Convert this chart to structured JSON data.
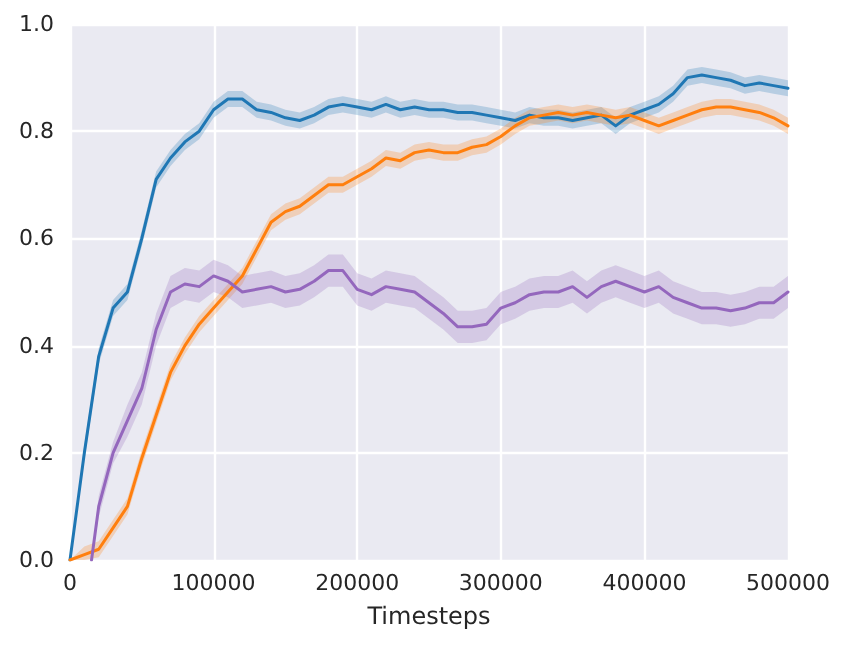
{
  "chart_data": {
    "type": "line",
    "xlabel": "Timesteps",
    "grid": true,
    "marker": "none",
    "line_style": "solid",
    "xlim": [
      0,
      500000
    ],
    "xticks": [
      0,
      100000,
      200000,
      300000,
      400000,
      500000
    ],
    "ylim": [
      0,
      1
    ],
    "yticks": [
      {
        "value": 0,
        "label": "0.0"
      },
      {
        "value": 0.2,
        "label": "0.2"
      },
      {
        "value": 0.4,
        "label": "0.4"
      },
      {
        "value": 0.6,
        "label": "0.6"
      },
      {
        "value": 0.8,
        "label": "0.8"
      },
      {
        "value": 1,
        "label": "1.0"
      }
    ],
    "x": [
      0,
      10000,
      20000,
      30000,
      40000,
      50000,
      60000,
      70000,
      80000,
      90000,
      100000,
      110000,
      120000,
      130000,
      140000,
      150000,
      160000,
      170000,
      180000,
      190000,
      200000,
      210000,
      220000,
      230000,
      240000,
      250000,
      260000,
      270000,
      280000,
      290000,
      300000,
      310000,
      320000,
      330000,
      340000,
      350000,
      360000,
      370000,
      380000,
      390000,
      400000,
      410000,
      420000,
      430000,
      440000,
      450000,
      460000,
      470000,
      480000,
      490000,
      500000
    ],
    "series": [
      {
        "color": "#1f77b4",
        "values": [
          0,
          0.2,
          0.38,
          0.47,
          0.5,
          0.6,
          0.71,
          0.75,
          0.78,
          0.8,
          0.84,
          0.86,
          0.86,
          0.84,
          0.835,
          0.825,
          0.82,
          0.83,
          0.845,
          0.85,
          0.845,
          0.84,
          0.85,
          0.84,
          0.845,
          0.84,
          0.84,
          0.835,
          0.835,
          0.83,
          0.825,
          0.82,
          0.83,
          0.825,
          0.825,
          0.82,
          0.825,
          0.83,
          0.81,
          0.83,
          0.84,
          0.85,
          0.87,
          0.9,
          0.905,
          0.9,
          0.895,
          0.885,
          0.89,
          0.885,
          0.88
        ],
        "lower": [
          0,
          0.185,
          0.365,
          0.455,
          0.485,
          0.585,
          0.695,
          0.735,
          0.765,
          0.785,
          0.825,
          0.845,
          0.845,
          0.825,
          0.82,
          0.81,
          0.805,
          0.815,
          0.83,
          0.835,
          0.83,
          0.825,
          0.835,
          0.825,
          0.83,
          0.825,
          0.825,
          0.82,
          0.82,
          0.815,
          0.81,
          0.805,
          0.815,
          0.81,
          0.81,
          0.805,
          0.81,
          0.815,
          0.795,
          0.815,
          0.825,
          0.835,
          0.855,
          0.885,
          0.89,
          0.885,
          0.88,
          0.87,
          0.875,
          0.87,
          0.865
        ],
        "upper": [
          0,
          0.215,
          0.395,
          0.485,
          0.515,
          0.615,
          0.725,
          0.765,
          0.795,
          0.815,
          0.855,
          0.875,
          0.875,
          0.855,
          0.85,
          0.84,
          0.835,
          0.845,
          0.86,
          0.865,
          0.86,
          0.855,
          0.865,
          0.855,
          0.86,
          0.855,
          0.855,
          0.85,
          0.85,
          0.845,
          0.84,
          0.835,
          0.845,
          0.84,
          0.84,
          0.835,
          0.84,
          0.845,
          0.825,
          0.845,
          0.855,
          0.865,
          0.885,
          0.915,
          0.92,
          0.915,
          0.91,
          0.9,
          0.905,
          0.9,
          0.895
        ]
      },
      {
        "color": "#ff7f0e",
        "values": [
          0,
          0.01,
          0.02,
          0.06,
          0.1,
          0.19,
          0.27,
          0.35,
          0.4,
          0.44,
          0.47,
          0.5,
          0.53,
          0.58,
          0.63,
          0.65,
          0.66,
          0.68,
          0.7,
          0.7,
          0.715,
          0.73,
          0.75,
          0.745,
          0.76,
          0.765,
          0.76,
          0.76,
          0.77,
          0.775,
          0.79,
          0.81,
          0.825,
          0.83,
          0.835,
          0.83,
          0.835,
          0.83,
          0.825,
          0.83,
          0.82,
          0.81,
          0.82,
          0.83,
          0.84,
          0.845,
          0.845,
          0.84,
          0.835,
          0.825,
          0.81
        ],
        "lower": [
          0,
          0,
          0.005,
          0.045,
          0.085,
          0.175,
          0.255,
          0.335,
          0.385,
          0.425,
          0.455,
          0.485,
          0.515,
          0.565,
          0.615,
          0.635,
          0.645,
          0.665,
          0.685,
          0.685,
          0.7,
          0.715,
          0.735,
          0.73,
          0.745,
          0.75,
          0.745,
          0.745,
          0.755,
          0.76,
          0.775,
          0.795,
          0.81,
          0.815,
          0.82,
          0.815,
          0.82,
          0.815,
          0.81,
          0.815,
          0.805,
          0.795,
          0.805,
          0.815,
          0.825,
          0.83,
          0.83,
          0.825,
          0.82,
          0.81,
          0.795
        ],
        "upper": [
          0,
          0.025,
          0.035,
          0.075,
          0.115,
          0.205,
          0.285,
          0.365,
          0.415,
          0.455,
          0.485,
          0.515,
          0.545,
          0.595,
          0.645,
          0.665,
          0.675,
          0.695,
          0.715,
          0.715,
          0.73,
          0.745,
          0.765,
          0.76,
          0.775,
          0.78,
          0.775,
          0.775,
          0.785,
          0.79,
          0.805,
          0.825,
          0.84,
          0.845,
          0.85,
          0.845,
          0.85,
          0.845,
          0.84,
          0.845,
          0.835,
          0.825,
          0.835,
          0.845,
          0.855,
          0.86,
          0.86,
          0.855,
          0.85,
          0.84,
          0.825
        ]
      },
      {
        "color": "#9467bd",
        "x": [
          15000,
          20000,
          30000,
          40000,
          50000,
          60000,
          70000,
          80000,
          90000,
          100000,
          110000,
          120000,
          130000,
          140000,
          150000,
          160000,
          170000,
          180000,
          190000,
          200000,
          210000,
          220000,
          230000,
          240000,
          250000,
          260000,
          270000,
          280000,
          290000,
          300000,
          310000,
          320000,
          330000,
          340000,
          350000,
          360000,
          370000,
          380000,
          390000,
          400000,
          410000,
          420000,
          430000,
          440000,
          450000,
          460000,
          470000,
          480000,
          490000,
          500000
        ],
        "values": [
          0,
          0.1,
          0.2,
          0.26,
          0.32,
          0.43,
          0.5,
          0.515,
          0.51,
          0.53,
          0.52,
          0.5,
          0.505,
          0.51,
          0.5,
          0.505,
          0.52,
          0.54,
          0.54,
          0.505,
          0.495,
          0.51,
          0.505,
          0.5,
          0.48,
          0.46,
          0.435,
          0.435,
          0.44,
          0.47,
          0.48,
          0.495,
          0.5,
          0.5,
          0.51,
          0.49,
          0.51,
          0.52,
          0.51,
          0.5,
          0.51,
          0.49,
          0.48,
          0.47,
          0.47,
          0.465,
          0.47,
          0.48,
          0.48,
          0.5
        ],
        "lower": [
          0,
          0.08,
          0.18,
          0.23,
          0.29,
          0.4,
          0.47,
          0.485,
          0.48,
          0.5,
          0.49,
          0.47,
          0.475,
          0.48,
          0.47,
          0.475,
          0.49,
          0.51,
          0.51,
          0.475,
          0.465,
          0.48,
          0.475,
          0.47,
          0.45,
          0.43,
          0.405,
          0.405,
          0.41,
          0.44,
          0.45,
          0.465,
          0.47,
          0.47,
          0.48,
          0.46,
          0.48,
          0.49,
          0.48,
          0.47,
          0.48,
          0.46,
          0.45,
          0.44,
          0.44,
          0.435,
          0.44,
          0.45,
          0.45,
          0.47
        ],
        "upper": [
          0,
          0.12,
          0.22,
          0.29,
          0.35,
          0.46,
          0.53,
          0.545,
          0.54,
          0.56,
          0.55,
          0.53,
          0.535,
          0.54,
          0.53,
          0.535,
          0.55,
          0.57,
          0.57,
          0.535,
          0.525,
          0.54,
          0.535,
          0.53,
          0.51,
          0.49,
          0.465,
          0.465,
          0.47,
          0.5,
          0.51,
          0.525,
          0.53,
          0.53,
          0.54,
          0.52,
          0.54,
          0.55,
          0.54,
          0.53,
          0.54,
          0.52,
          0.51,
          0.5,
          0.5,
          0.495,
          0.5,
          0.51,
          0.51,
          0.53
        ]
      }
    ]
  }
}
